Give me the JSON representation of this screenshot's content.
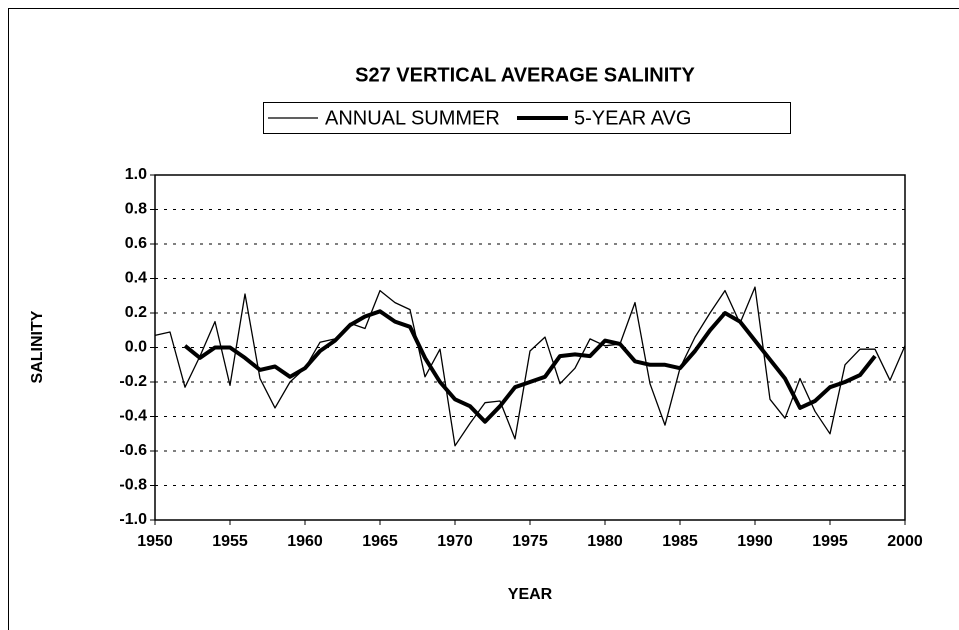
{
  "chart_data": {
    "type": "line",
    "title": "S27 VERTICAL AVERAGE SALINITY",
    "x_label": "YEAR",
    "y_label": "SALINITY",
    "x": [
      1950,
      1951,
      1952,
      1953,
      1954,
      1955,
      1956,
      1957,
      1958,
      1959,
      1960,
      1961,
      1962,
      1963,
      1964,
      1965,
      1966,
      1967,
      1968,
      1969,
      1970,
      1971,
      1972,
      1973,
      1974,
      1975,
      1976,
      1977,
      1978,
      1979,
      1980,
      1981,
      1982,
      1983,
      1984,
      1985,
      1986,
      1987,
      1988,
      1989,
      1990,
      1991,
      1992,
      1993,
      1994,
      1995,
      1996,
      1997,
      1998,
      1999,
      2000
    ],
    "series": [
      {
        "name": "ANNUAL SUMMER",
        "color": "#000000",
        "width": 1.3,
        "values": [
          0.07,
          0.09,
          -0.23,
          -0.05,
          0.15,
          -0.22,
          0.31,
          -0.18,
          -0.35,
          -0.2,
          -0.12,
          0.03,
          0.05,
          0.14,
          0.11,
          0.33,
          0.26,
          0.22,
          -0.17,
          -0.01,
          -0.57,
          -0.44,
          -0.32,
          -0.31,
          -0.53,
          -0.02,
          0.06,
          -0.21,
          -0.12,
          0.05,
          0.01,
          0.02,
          0.26,
          -0.21,
          -0.45,
          -0.12,
          0.06,
          0.2,
          0.33,
          0.14,
          0.35,
          -0.3,
          -0.41,
          -0.18,
          -0.37,
          -0.5,
          -0.1,
          -0.01,
          -0.01,
          -0.19,
          0.01
        ]
      },
      {
        "name": "5-YEAR AVG",
        "color": "#000000",
        "width": 4,
        "values": [
          null,
          null,
          0.01,
          -0.06,
          0.0,
          0.0,
          -0.06,
          -0.13,
          -0.11,
          -0.17,
          -0.12,
          -0.02,
          0.04,
          0.13,
          0.18,
          0.21,
          0.15,
          0.12,
          -0.06,
          -0.2,
          -0.3,
          -0.34,
          -0.43,
          -0.34,
          -0.23,
          -0.2,
          -0.17,
          -0.05,
          -0.04,
          -0.05,
          0.04,
          0.02,
          -0.08,
          -0.1,
          -0.1,
          -0.12,
          -0.02,
          0.1,
          0.2,
          0.15,
          0.04,
          -0.07,
          -0.18,
          -0.35,
          -0.31,
          -0.23,
          -0.2,
          -0.16,
          -0.05,
          null,
          null
        ]
      }
    ],
    "xlim": [
      1950,
      2000
    ],
    "xticks": [
      1950,
      1955,
      1960,
      1965,
      1970,
      1975,
      1980,
      1985,
      1990,
      1995,
      2000
    ],
    "ylim": [
      -1,
      1
    ],
    "yticks": [
      {
        "value": -1,
        "label": "-1.0"
      },
      -0.8,
      -0.6,
      -0.4,
      -0.2,
      {
        "value": 0,
        "label": "0.0"
      },
      0.2,
      0.4,
      0.6,
      0.8,
      {
        "value": 1,
        "label": "1.0"
      }
    ],
    "grid": true,
    "legend": "top"
  }
}
